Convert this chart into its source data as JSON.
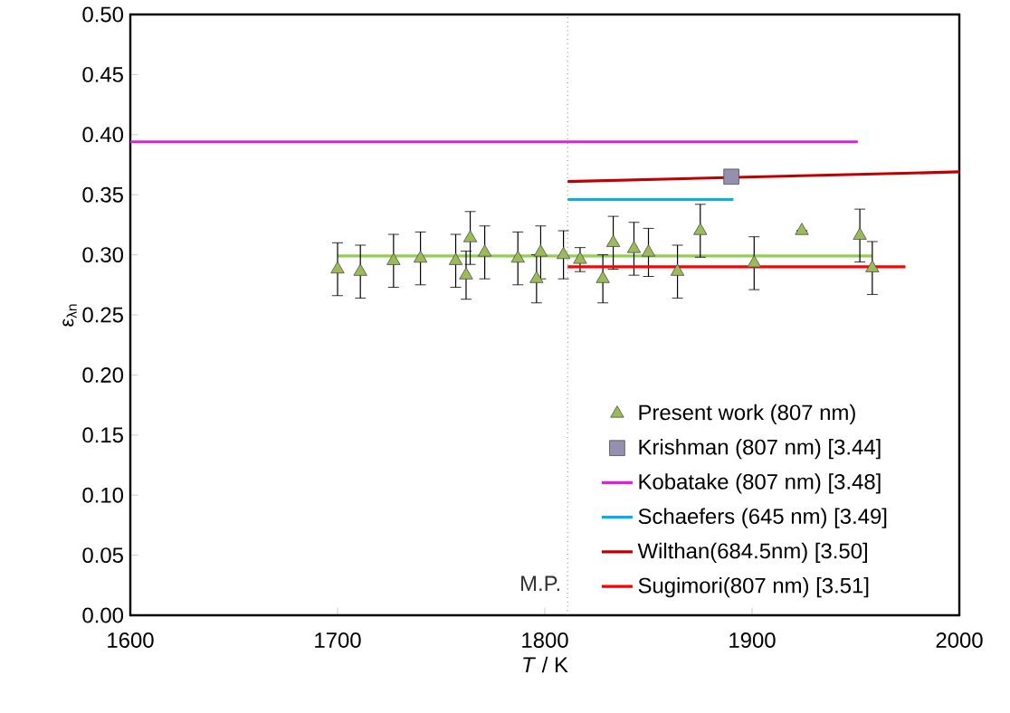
{
  "chart_data": {
    "type": "line",
    "xlabel": "*T* / K",
    "ylabel": "ε$_{λn}$",
    "xlim": [
      1600,
      2000
    ],
    "ylim": [
      0,
      0.5
    ],
    "xticks": [
      1600,
      1700,
      1800,
      1900,
      2000
    ],
    "yticks": [
      {
        "value": 0,
        "label": "0.00"
      },
      {
        "value": 0.05,
        "label": "0.05"
      },
      {
        "value": 0.1,
        "label": "0.10"
      },
      {
        "value": 0.15,
        "label": "0.15"
      },
      {
        "value": 0.2,
        "label": "0.20"
      },
      {
        "value": 0.25,
        "label": "0.25"
      },
      {
        "value": 0.3,
        "label": "0.30"
      },
      {
        "value": 0.35,
        "label": "0.35"
      },
      {
        "value": 0.4,
        "label": "0.40"
      },
      {
        "value": 0.45,
        "label": "0.45"
      },
      {
        "value": 0.5,
        "label": "0.50"
      }
    ],
    "legend": "bottom right",
    "ref_lines": [
      {
        "axis": "x",
        "value": 1811,
        "label": "M.P.",
        "line_style": "dotted",
        "color": "#404040"
      }
    ],
    "series": [
      {
        "color": "#92d050",
        "x": [
          1700,
          1958
        ],
        "values": [
          0.299,
          0.299
        ]
      },
      {
        "type": "scatter",
        "name": "Present work (807 nm)",
        "marker": "triangle",
        "color": "#9bbb59",
        "x": [
          1700,
          1711,
          1727,
          1740,
          1757,
          1762,
          1764,
          1771,
          1787,
          1796,
          1798,
          1809,
          1817,
          1828,
          1833,
          1843,
          1850,
          1864,
          1875,
          1901,
          1924,
          1952,
          1958
        ],
        "values": [
          0.288,
          0.286,
          0.295,
          0.297,
          0.295,
          0.283,
          0.314,
          0.302,
          0.297,
          0.28,
          0.302,
          0.3,
          0.296,
          0.28,
          0.31,
          0.305,
          0.302,
          0.286,
          0.32,
          0.293,
          0.32,
          0.316,
          0.289
        ],
        "errors": [
          0.022,
          0.022,
          0.022,
          0.022,
          0.022,
          0.02,
          0.022,
          0.022,
          0.022,
          0.02,
          0.022,
          0.02,
          0.01,
          0.02,
          0.022,
          0.022,
          0.02,
          0.022,
          0.022,
          0.022,
          null,
          0.022,
          0.022
        ]
      },
      {
        "type": "scatter",
        "name": "Krishman (807 nm) [3.44]",
        "marker": "square",
        "color": "#9590b0",
        "x": [
          1890
        ],
        "values": [
          0.365
        ]
      },
      {
        "name": "Kobatake (807 nm) [3.48]",
        "color": "#e020e0",
        "x": [
          1600,
          1951
        ],
        "values": [
          0.394,
          0.394
        ]
      },
      {
        "name": "Schaefers (645 nm) [3.49]",
        "color": "#00b0f0",
        "x": [
          1811,
          1891
        ],
        "values": [
          0.346,
          0.346
        ]
      },
      {
        "name": "Wilthan(684.5nm) [3.50]",
        "color": "#c00000",
        "x": [
          1811,
          2000
        ],
        "values": [
          0.361,
          0.369
        ]
      },
      {
        "name": "Sugimori(807 nm) [3.51]",
        "color": "#ff0000",
        "x": [
          1811,
          1974
        ],
        "values": [
          0.29,
          0.29
        ]
      }
    ]
  }
}
